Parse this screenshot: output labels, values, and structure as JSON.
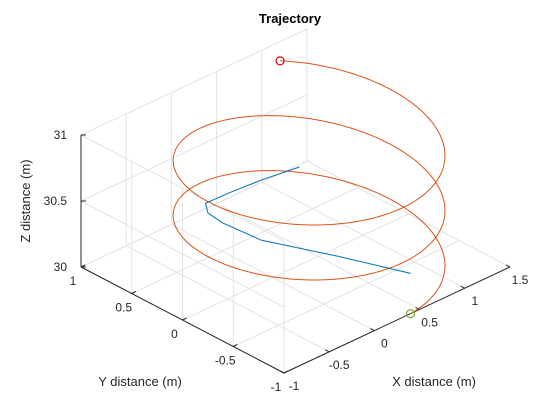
{
  "chart_data": {
    "type": "line",
    "projection": "3d",
    "title": "Trajectory",
    "xlabel": "X distance (m)",
    "ylabel": "Y distance (m)",
    "zlabel": "Z distance (m)",
    "xlim": [
      -1,
      1.5
    ],
    "ylim": [
      -1,
      1
    ],
    "zlim": [
      30,
      31
    ],
    "xticks": [
      "-1",
      "-0.5",
      "0",
      "0.5",
      "1",
      "1.5"
    ],
    "yticks": [
      "-1",
      "-0.5",
      "0",
      "0.5",
      "1"
    ],
    "zticks": [
      "30",
      "30.5",
      "31"
    ],
    "grid": true,
    "series": [
      {
        "role": "reference",
        "color": "#d95319",
        "shape": "helix",
        "center": [
          0.4,
          0
        ],
        "radius": 1.0,
        "z_start": 30.0,
        "z_end": 31.0,
        "turns": 2.4,
        "start_marker": {
          "color": "#77ac30",
          "symbol": "circle"
        },
        "end_marker": {
          "color": "#d90000",
          "symbol": "circle"
        }
      },
      {
        "role": "actual",
        "color": "#0072bd",
        "points": [
          [
            0.85,
            -0.6,
            30.0
          ],
          [
            0.5,
            -0.2,
            30.08
          ],
          [
            0.1,
            0.2,
            30.17
          ],
          [
            -0.05,
            0.45,
            30.25
          ],
          [
            -0.1,
            0.55,
            30.3
          ],
          [
            -0.05,
            0.62,
            30.33
          ],
          [
            0.2,
            0.6,
            30.34
          ],
          [
            0.5,
            0.55,
            30.36
          ],
          [
            0.8,
            0.45,
            30.4
          ]
        ]
      }
    ]
  }
}
